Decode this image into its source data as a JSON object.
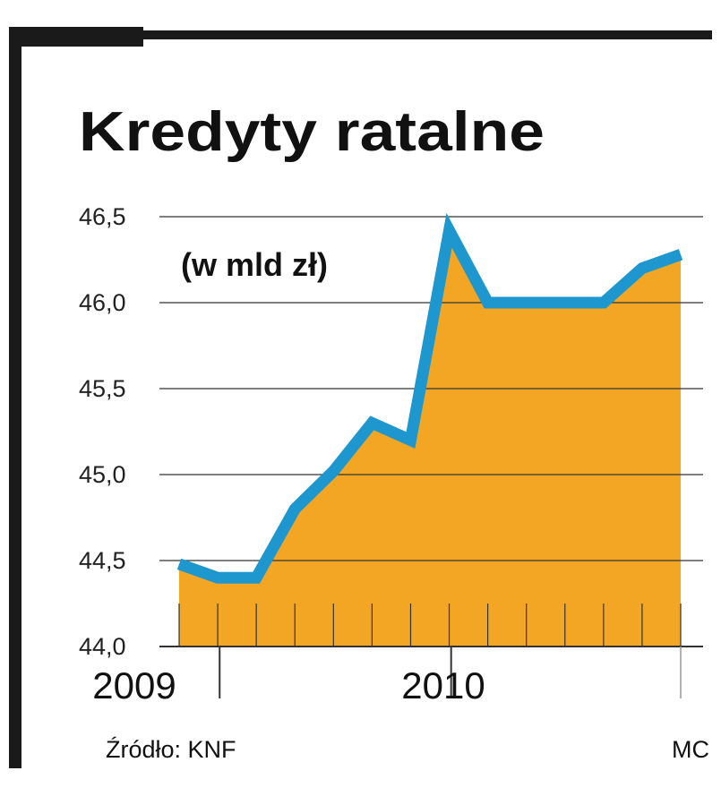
{
  "colors": {
    "frame": "#1a1a1a",
    "area": "#f2a623",
    "line": "#1e97cf",
    "grid": "#333333"
  },
  "footer": {
    "source": "Źródło: KNF",
    "credit": "MC"
  },
  "chart_data": {
    "type": "area",
    "title": "Kredyty ratalne",
    "subtitle": "(w mld zł)",
    "ylim": [
      44.0,
      46.5
    ],
    "yticks": [
      "46,5",
      "46,0",
      "45,5",
      "45,0",
      "44,5",
      "44,0"
    ],
    "ytick_values": [
      46.5,
      46.0,
      45.5,
      45.0,
      44.5,
      44.0
    ],
    "year_labels": [
      {
        "label": "2009",
        "index": 1
      },
      {
        "label": "2010",
        "index": 7
      }
    ],
    "x_index": [
      0,
      1,
      2,
      3,
      4,
      5,
      6,
      7,
      8,
      9,
      10,
      11,
      12,
      13
    ],
    "values": [
      44.48,
      44.4,
      44.4,
      44.8,
      45.02,
      45.3,
      45.2,
      46.42,
      46.0,
      46.0,
      46.0,
      46.0,
      46.2,
      46.28
    ],
    "grid": true
  }
}
